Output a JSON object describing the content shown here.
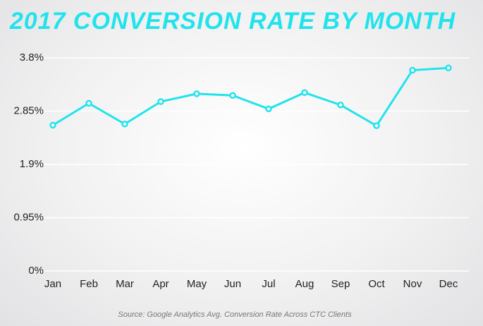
{
  "chart_data": {
    "type": "line",
    "title": "2017 CONVERSION RATE BY MONTH",
    "source": "Source: Google Analytics Avg. Conversion Rate Across CTC Clients",
    "categories": [
      "Jan",
      "Feb",
      "Mar",
      "Apr",
      "May",
      "Jun",
      "Jul",
      "Aug",
      "Sep",
      "Oct",
      "Nov",
      "Dec"
    ],
    "values": [
      2.6,
      2.99,
      2.62,
      3.02,
      3.16,
      3.13,
      2.89,
      3.18,
      2.96,
      2.59,
      3.58,
      3.62
    ],
    "color": "#22e3ec",
    "ylim": [
      0,
      3.8
    ],
    "yticks": [
      {
        "value": 0,
        "label": "0%"
      },
      {
        "value": 0.95,
        "label": "0.95%"
      },
      {
        "value": 1.9,
        "label": "1.9%"
      },
      {
        "value": 2.85,
        "label": "2.85%"
      },
      {
        "value": 3.8,
        "label": "3.8%"
      }
    ],
    "grid": true
  }
}
